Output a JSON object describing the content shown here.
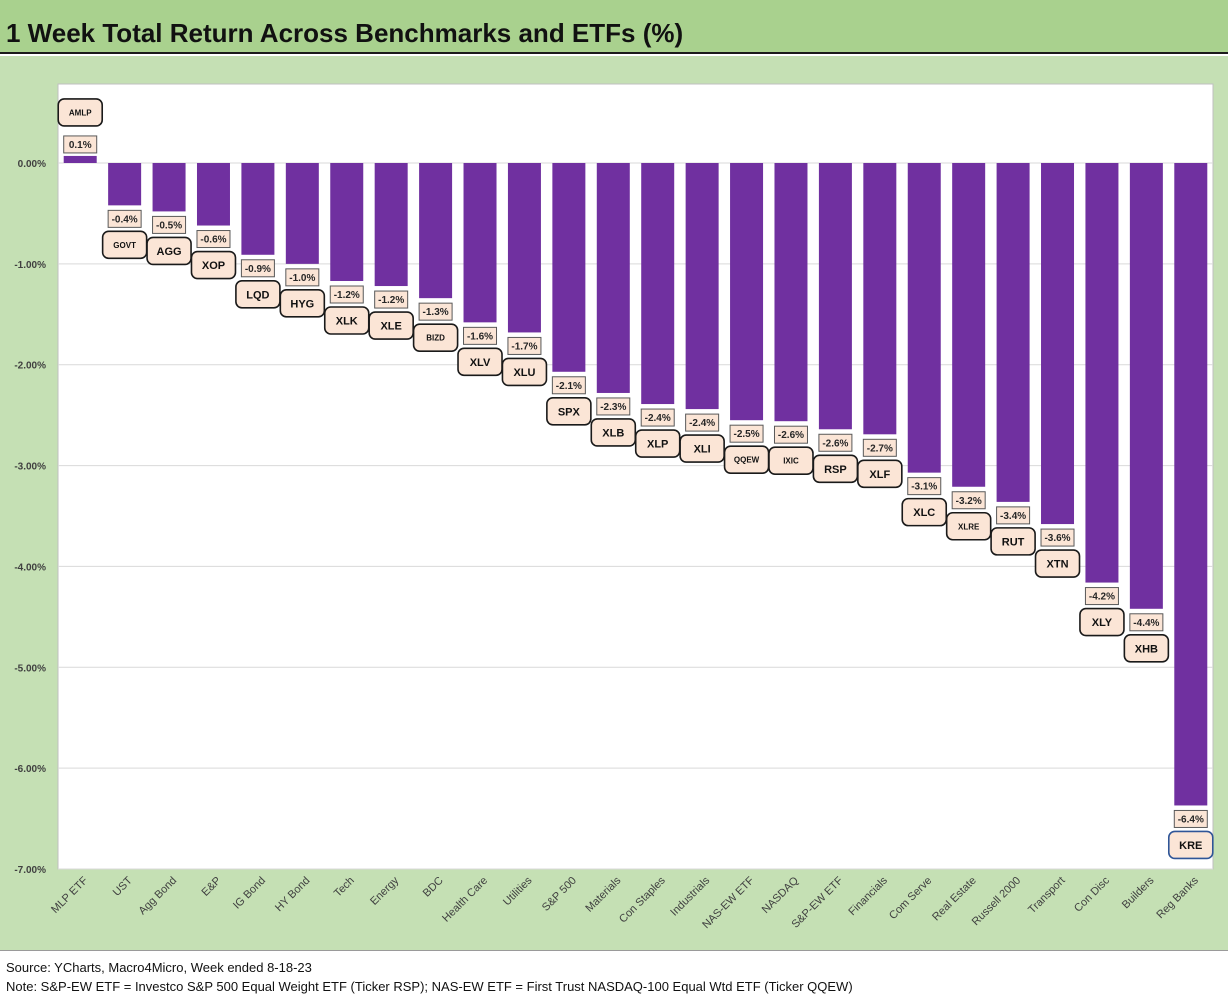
{
  "chart_data": {
    "type": "bar",
    "title": "1 Week Total Return Across Benchmarks and ETFs (%)",
    "xlabel": "",
    "ylabel": "",
    "ylim": [
      -7,
      0.8
    ],
    "yticks": [
      "0.00%",
      "-1.00%",
      "-2.00%",
      "-3.00%",
      "-4.00%",
      "-5.00%",
      "-6.00%",
      "-7.00%"
    ],
    "grid": true,
    "legend": "none",
    "bar_color": "#7030a0",
    "categories": [
      "MLP ETF",
      "UST",
      "Agg Bond",
      "E&P",
      "IG Bond",
      "HY Bond",
      "Tech",
      "Energy",
      "BDC",
      "Health Care",
      "Utilities",
      "S&P 500",
      "Materials",
      "Con Staples",
      "Industrials",
      "NAS-EW ETF",
      "NASDAQ",
      "S&P-EW ETF",
      "Financials",
      "Com Serve",
      "Real Estate",
      "Russell 2000",
      "Transport",
      "Con Disc",
      "Builders",
      "Reg Banks"
    ],
    "values": [
      0.07,
      -0.42,
      -0.48,
      -0.62,
      -0.91,
      -1.0,
      -1.17,
      -1.22,
      -1.34,
      -1.58,
      -1.68,
      -2.07,
      -2.28,
      -2.39,
      -2.44,
      -2.55,
      -2.56,
      -2.64,
      -2.69,
      -3.07,
      -3.21,
      -3.36,
      -3.58,
      -4.16,
      -4.42,
      -6.37
    ],
    "value_labels": [
      "0.1%",
      "-0.4%",
      "-0.5%",
      "-0.6%",
      "-0.9%",
      "-1.0%",
      "-1.2%",
      "-1.2%",
      "-1.3%",
      "-1.6%",
      "-1.7%",
      "-2.1%",
      "-2.3%",
      "-2.4%",
      "-2.4%",
      "-2.5%",
      "-2.6%",
      "-2.6%",
      "-2.7%",
      "-3.1%",
      "-3.2%",
      "-3.4%",
      "-3.6%",
      "-4.2%",
      "-4.4%",
      "-6.4%"
    ],
    "tickers": [
      "AMLP",
      "GOVT",
      "AGG",
      "XOP",
      "LQD",
      "HYG",
      "XLK",
      "XLE",
      "BIZD",
      "XLV",
      "XLU",
      "SPX",
      "XLB",
      "XLP",
      "XLI",
      "QQEW",
      "IXIC",
      "RSP",
      "XLF",
      "XLC",
      "XLRE",
      "RUT",
      "XTN",
      "XLY",
      "XHB",
      "KRE"
    ]
  },
  "footer": {
    "source": "Source: YCharts, Macro4Micro, Week ended 8-18-23",
    "note": "Note: S&P-EW ETF = Investco S&P 500 Equal Weight ETF (Ticker RSP); NAS-EW ETF = First Trust NASDAQ-100 Equal Wtd ETF (Ticker QQEW)"
  },
  "colors": {
    "header_background": "#a9d18e",
    "chart_frame": "#c5e0b4",
    "plot_background": "#ffffff",
    "bar": "#7030a0",
    "label_box": "#fbe5d6"
  }
}
